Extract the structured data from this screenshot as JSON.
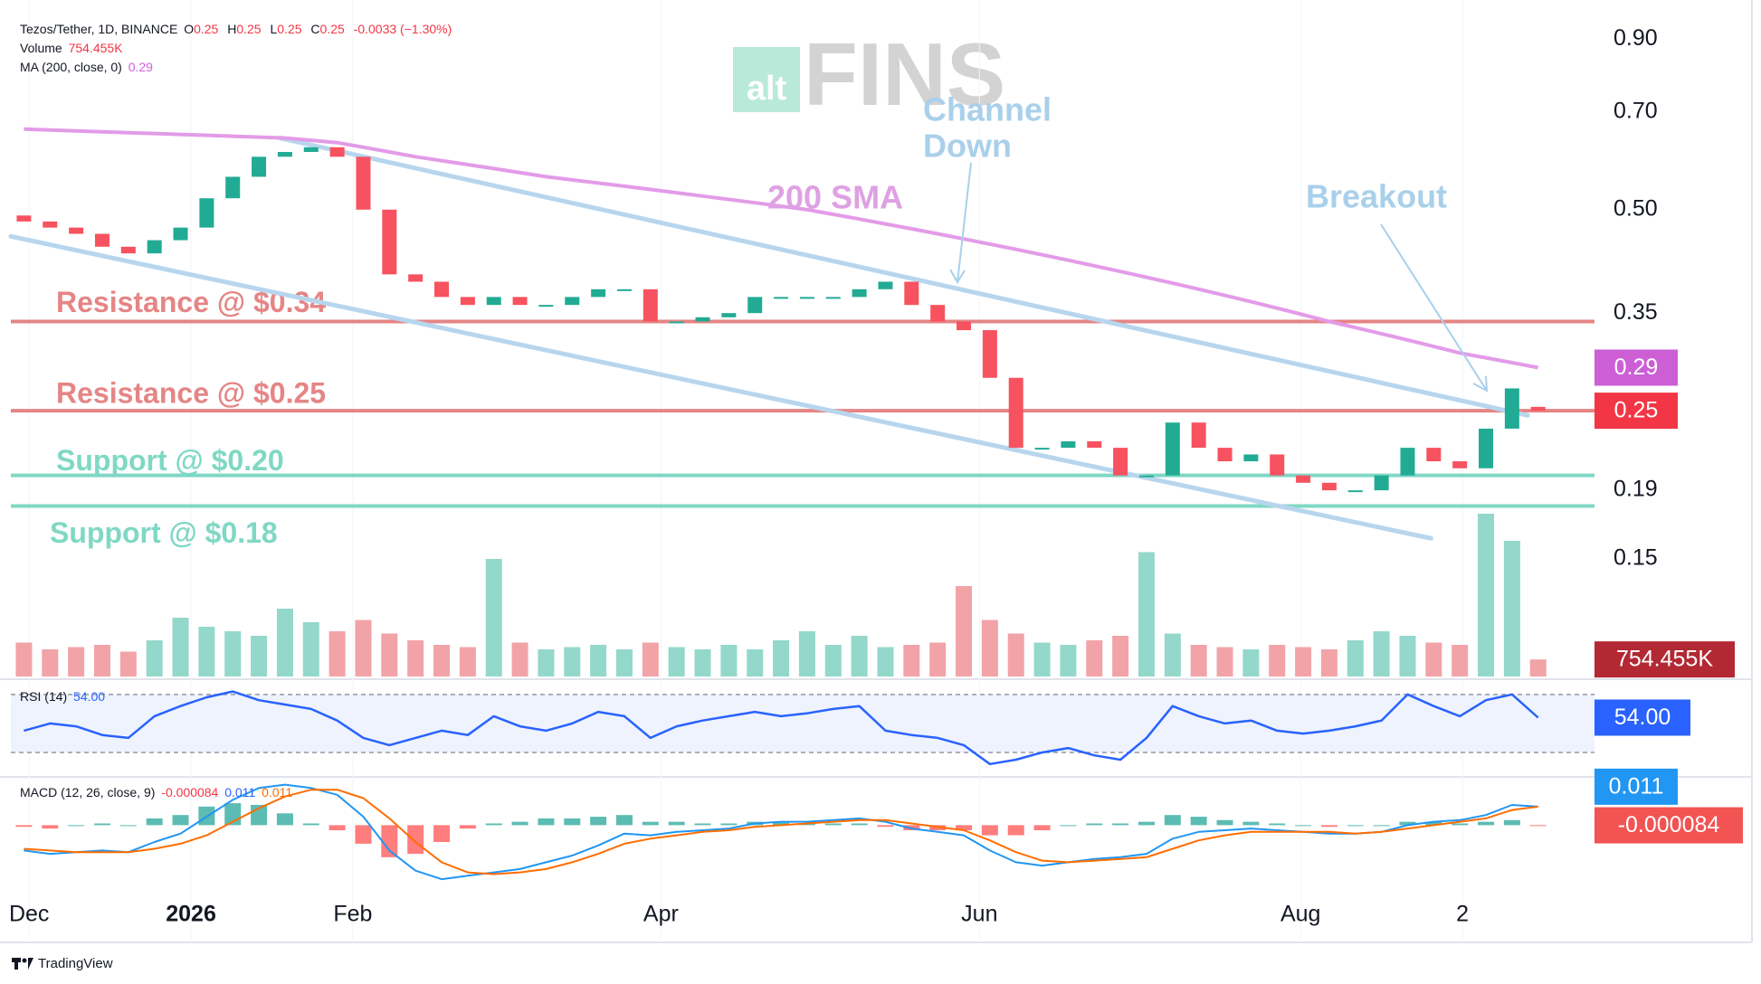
{
  "chart_data": [
    {
      "type": "candlestick",
      "title": "Tezos/Tether, 1D, BINANCE",
      "legend": [
        {
          "key": "O",
          "value": "0.25"
        },
        {
          "key": "H",
          "value": "0.25"
        },
        {
          "key": "L",
          "value": "0.25"
        },
        {
          "key": "C",
          "value": "0.25"
        }
      ],
      "change": "-0.0033 (−1.30%)",
      "log_scale": true,
      "ylim": [
        0.1,
        1.03
      ],
      "yticks": [
        {
          "value": 0.9,
          "label": "0.90"
        },
        {
          "value": 0.7,
          "label": "0.70"
        },
        {
          "value": 0.5,
          "label": "0.50"
        },
        0.35,
        0.19,
        0.15
      ],
      "xlim": [
        0,
        60
      ],
      "xticks": [
        {
          "value": 0.7,
          "label": "Dec"
        },
        {
          "value": 6.9,
          "label": "2026",
          "bold": true
        },
        {
          "value": 13.1,
          "label": "Feb"
        },
        {
          "value": 24.9,
          "label": "Apr"
        },
        {
          "value": 37.1,
          "label": "Jun"
        },
        {
          "value": 49.4,
          "label": "Aug"
        },
        {
          "value": 55.6,
          "label": "2"
        }
      ],
      "up_color": "#22ab94",
      "down_color": "#f7525f",
      "last_color": "#f23645",
      "open": [
        0.49,
        0.48,
        0.47,
        0.46,
        0.44,
        0.43,
        0.45,
        0.47,
        0.52,
        0.56,
        0.6,
        0.61,
        0.62,
        0.6,
        0.5,
        0.4,
        0.39,
        0.37,
        0.36,
        0.37,
        0.36,
        0.36,
        0.37,
        0.38,
        0.38,
        0.34,
        0.34,
        0.345,
        0.35,
        0.37,
        0.37,
        0.37,
        0.37,
        0.38,
        0.39,
        0.36,
        0.34,
        0.33,
        0.28,
        0.22,
        0.22,
        0.225,
        0.22,
        0.2,
        0.2,
        0.24,
        0.22,
        0.21,
        0.215,
        0.2,
        0.195,
        0.19,
        0.19,
        0.2,
        0.22,
        0.21,
        0.205,
        0.235,
        0.2533
      ],
      "close": [
        0.48,
        0.47,
        0.46,
        0.44,
        0.43,
        0.45,
        0.47,
        0.52,
        0.56,
        0.6,
        0.61,
        0.62,
        0.6,
        0.5,
        0.4,
        0.39,
        0.37,
        0.36,
        0.37,
        0.36,
        0.36,
        0.37,
        0.38,
        0.38,
        0.34,
        0.34,
        0.345,
        0.35,
        0.37,
        0.37,
        0.37,
        0.37,
        0.38,
        0.39,
        0.36,
        0.34,
        0.33,
        0.28,
        0.22,
        0.22,
        0.225,
        0.22,
        0.2,
        0.2,
        0.24,
        0.22,
        0.21,
        0.215,
        0.2,
        0.195,
        0.19,
        0.19,
        0.2,
        0.22,
        0.21,
        0.205,
        0.235,
        0.27,
        0.25
      ],
      "overlays": [
        {
          "name": "MA (200, close, 0)",
          "color": "#e39be8",
          "label_color": "#cc5fd6",
          "values": [
            0.66,
            0.658,
            0.656,
            0.654,
            0.652,
            0.65,
            0.648,
            0.646,
            0.644,
            0.642,
            0.64,
            0.635,
            0.63,
            0.62,
            0.61,
            0.6,
            0.592,
            0.584,
            0.576,
            0.568,
            0.56,
            0.554,
            0.548,
            0.542,
            0.536,
            0.53,
            0.524,
            0.518,
            0.512,
            0.506,
            0.5,
            0.492,
            0.484,
            0.476,
            0.468,
            0.46,
            0.452,
            0.444,
            0.436,
            0.428,
            0.42,
            0.412,
            0.404,
            0.396,
            0.388,
            0.38,
            0.372,
            0.364,
            0.356,
            0.348,
            0.34,
            0.333,
            0.326,
            0.319,
            0.312,
            0.305,
            0.3,
            0.295,
            0.29
          ]
        }
      ],
      "levels": [
        {
          "label": "Resistance @ $0.34",
          "value": 0.34,
          "color": "#e58585"
        },
        {
          "label": "Resistance @ $0.25",
          "value": 0.25,
          "color": "#e58585"
        },
        {
          "label": "Support @ $0.20",
          "value": 0.2,
          "color": "#7fd8c4"
        },
        {
          "label": "Support @ $0.18",
          "value": 0.18,
          "color": "#7fd8c4"
        }
      ],
      "trendlines": [
        {
          "x": [
            10.3,
            58.1
          ],
          "y": [
            0.64,
            0.246
          ]
        },
        {
          "x": [
            0,
            54.4
          ],
          "y": [
            0.456,
            0.161
          ]
        }
      ],
      "trendline_color": "#b7d6ee",
      "annotations": {
        "channel": [
          "Channel",
          "Down"
        ],
        "sma": "200 SMA",
        "breakout": "Breakout"
      }
    },
    {
      "type": "bar",
      "title": "Volume",
      "ylim": [
        0,
        8000
      ],
      "up_color": "#93d8cb",
      "down_color": "#f2a3a8",
      "label_color": "#b22833",
      "values": [
        1500,
        1200,
        1300,
        1400,
        1100,
        1600,
        2600,
        2200,
        2000,
        1800,
        3000,
        2400,
        2000,
        2500,
        1900,
        1600,
        1400,
        1300,
        5200,
        1500,
        1200,
        1300,
        1400,
        1200,
        1500,
        1300,
        1200,
        1400,
        1200,
        1600,
        2000,
        1400,
        1800,
        1300,
        1400,
        1500,
        4000,
        2500,
        1900,
        1500,
        1400,
        1600,
        1800,
        5500,
        1900,
        1400,
        1300,
        1200,
        1400,
        1300,
        1200,
        1600,
        2000,
        1800,
        1500,
        1400,
        7200,
        6000,
        754.455
      ],
      "value_labels": [
        null,
        null,
        null,
        null,
        null,
        null,
        null,
        null,
        null,
        null,
        null,
        null,
        null,
        null,
        null,
        null,
        null,
        null,
        null,
        null,
        null,
        null,
        null,
        null,
        null,
        null,
        null,
        null,
        null,
        null,
        null,
        null,
        null,
        null,
        null,
        null,
        null,
        null,
        null,
        null,
        null,
        null,
        null,
        null,
        null,
        null,
        null,
        null,
        null,
        null,
        null,
        null,
        null,
        null,
        null,
        null,
        null,
        null,
        "754.455K"
      ]
    },
    {
      "type": "line",
      "title": "RSI (14)",
      "ylim": [
        15,
        78
      ],
      "levels": [
        30,
        70
      ],
      "color": "#2962ff",
      "band_color": "#eef3fd",
      "values": [
        45,
        50,
        48,
        42,
        40,
        55,
        62,
        68,
        72,
        66,
        63,
        60,
        52,
        40,
        35,
        40,
        45,
        42,
        55,
        48,
        45,
        50,
        58,
        55,
        40,
        48,
        52,
        55,
        58,
        55,
        57,
        60,
        62,
        45,
        42,
        40,
        35,
        22,
        25,
        30,
        33,
        28,
        25,
        40,
        62,
        55,
        50,
        52,
        45,
        43,
        45,
        48,
        52,
        70,
        62,
        55,
        66,
        70,
        54
      ],
      "value_labels": [
        null,
        null,
        null,
        null,
        null,
        null,
        null,
        null,
        null,
        null,
        null,
        null,
        null,
        null,
        null,
        null,
        null,
        null,
        null,
        null,
        null,
        null,
        null,
        null,
        null,
        null,
        null,
        null,
        null,
        null,
        null,
        null,
        null,
        null,
        null,
        null,
        null,
        null,
        null,
        null,
        null,
        null,
        null,
        null,
        null,
        null,
        null,
        null,
        null,
        null,
        null,
        null,
        null,
        null,
        null,
        null,
        null,
        null,
        "54.00"
      ]
    },
    {
      "type": "macd",
      "title": "MACD (12, 26, close, 9)",
      "ylim": [
        -0.04,
        0.027
      ],
      "histogram": {
        "up_color": "#26a69a",
        "down_color": "#ff5252",
        "label_color": "#f25353",
        "values": [
          -0.001,
          -0.002,
          0,
          0.001,
          0,
          0.004,
          0.006,
          0.011,
          0.013,
          0.012,
          0.007,
          0.001,
          -0.003,
          -0.011,
          -0.019,
          -0.017,
          -0.01,
          -0.002,
          0.001,
          0.002,
          0.004,
          0.004,
          0.005,
          0.006,
          0.002,
          0.002,
          0.001,
          0.001,
          0.002,
          0.002,
          0.001,
          0.001,
          0.001,
          -0.001,
          -0.003,
          -0.003,
          -0.003,
          -0.006,
          -0.006,
          -0.003,
          0,
          0.001,
          0.001,
          0.002,
          0.006,
          0.005,
          0.003,
          0.002,
          0.001,
          0,
          -0.001,
          0,
          0,
          0.002,
          0.002,
          0.001,
          0.002,
          0.003,
          -8.4e-05
        ]
      },
      "macd": {
        "color": "#2196f3",
        "values": [
          -0.015,
          -0.017,
          -0.016,
          -0.015,
          -0.016,
          -0.01,
          -0.005,
          0.005,
          0.015,
          0.022,
          0.024,
          0.022,
          0.018,
          0.005,
          -0.015,
          -0.027,
          -0.032,
          -0.03,
          -0.028,
          -0.026,
          -0.022,
          -0.018,
          -0.012,
          -0.005,
          -0.006,
          -0.004,
          -0.003,
          -0.002,
          0.001,
          0.002,
          0.002,
          0.003,
          0.004,
          0.002,
          -0.002,
          -0.004,
          -0.006,
          -0.015,
          -0.022,
          -0.024,
          -0.022,
          -0.02,
          -0.019,
          -0.017,
          -0.008,
          -0.004,
          -0.003,
          -0.002,
          -0.003,
          -0.004,
          -0.005,
          -0.005,
          -0.004,
          0,
          0.002,
          0.003,
          0.006,
          0.012,
          0.011
        ]
      },
      "signal": {
        "color": "#ff6d00",
        "values": [
          -0.014,
          -0.015,
          -0.016,
          -0.016,
          -0.016,
          -0.014,
          -0.011,
          -0.006,
          0.002,
          0.01,
          0.017,
          0.021,
          0.021,
          0.016,
          0.004,
          -0.01,
          -0.022,
          -0.028,
          -0.029,
          -0.028,
          -0.026,
          -0.022,
          -0.017,
          -0.011,
          -0.008,
          -0.006,
          -0.004,
          -0.003,
          -0.001,
          0,
          0.001,
          0.002,
          0.003,
          0.003,
          0.001,
          -0.001,
          -0.003,
          -0.009,
          -0.016,
          -0.021,
          -0.022,
          -0.021,
          -0.02,
          -0.019,
          -0.014,
          -0.009,
          -0.006,
          -0.004,
          -0.004,
          -0.004,
          -0.004,
          -0.005,
          -0.004,
          -0.002,
          0,
          0.002,
          0.004,
          0.009,
          0.011
        ]
      }
    }
  ],
  "watermark": {
    "prefix": "alt",
    "name": "FINS"
  },
  "footer": "TradingView"
}
